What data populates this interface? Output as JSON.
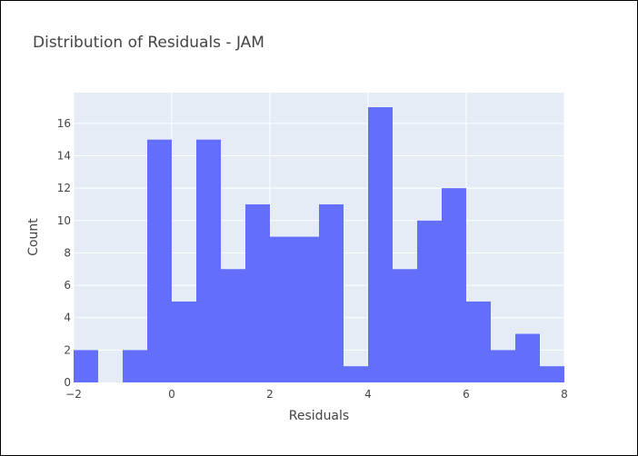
{
  "chart_data": {
    "type": "bar",
    "title": "Distribution of Residuals - JAM",
    "xlabel": "Residuals",
    "ylabel": "Count",
    "bin_width": 0.5,
    "xlim": [
      -2,
      8
    ],
    "ylim": [
      0,
      17.9
    ],
    "x_ticks": [
      -2,
      0,
      2,
      4,
      6,
      8
    ],
    "x_tick_labels": [
      "−2",
      "0",
      "2",
      "4",
      "6",
      "8"
    ],
    "y_ticks": [
      0,
      2,
      4,
      6,
      8,
      10,
      12,
      14,
      16
    ],
    "y_tick_labels": [
      "0",
      "2",
      "4",
      "6",
      "8",
      "10",
      "12",
      "14",
      "16"
    ],
    "bin_starts": [
      -2,
      -1.5,
      -1,
      -0.5,
      0,
      0.5,
      1,
      1.5,
      2,
      2.5,
      3,
      3.5,
      4,
      4.5,
      5,
      5.5,
      6,
      6.5,
      7,
      7.5
    ],
    "values": [
      2,
      0,
      2,
      15,
      5,
      15,
      7,
      11,
      9,
      9,
      11,
      1,
      17,
      7,
      10,
      12,
      5,
      2,
      3,
      1
    ],
    "grid": true,
    "colors": {
      "bar": "#636efa",
      "plot_bg": "#e5ecf6",
      "grid": "#ffffff",
      "text": "#444444"
    }
  }
}
